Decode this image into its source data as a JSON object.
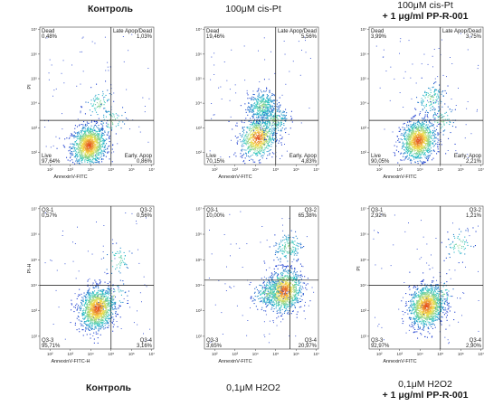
{
  "titles": {
    "top": [
      {
        "lines": [
          "Контроль"
        ]
      },
      {
        "lines": [
          "100μM cis-Pt"
        ]
      },
      {
        "lines": [
          "100μM cis-Pt",
          "+ 1 μg/ml PP-R-001"
        ]
      }
    ],
    "bottom": [
      {
        "lines": [
          "Контроль"
        ]
      },
      {
        "lines": [
          "0,1μM H2O2"
        ]
      },
      {
        "lines": [
          "0,1μM H2O2",
          "+ 1 μg/ml PP-R-001"
        ]
      }
    ]
  },
  "colors": {
    "density_low": "#1f3fd0",
    "density_mid": "#2fc8c8",
    "density_high": "#f5e04a",
    "density_peak": "#e03a1a",
    "quadrant_line": "#111111"
  },
  "chart_data": [
    {
      "type": "scatter",
      "subtype": "density-dot-plot",
      "xlabel": "AnnexinV-FITC",
      "ylabel": "PI",
      "x_scale": "log",
      "y_scale": "log",
      "x_ticks": [
        "10²",
        "10³",
        "10⁴",
        "10⁵",
        "10⁶",
        "10⁷"
      ],
      "y_ticks": [
        "10²",
        "10³",
        "10⁴",
        "10⁵",
        "10⁶",
        "10⁷"
      ],
      "quadrants": {
        "upper_left": {
          "label": "Dead",
          "value": "0,48%"
        },
        "upper_right": {
          "label": "Late Apop/Dead",
          "value": "1,03%"
        },
        "lower_left": {
          "label": "Live",
          "value": "97,64%"
        },
        "lower_right": {
          "label": "Early. Apop",
          "value": "0,86%"
        }
      },
      "clusters": [
        {
          "x": 3.9,
          "y": 2.3,
          "weight": 0.93
        },
        {
          "x": 4.4,
          "y": 4.0,
          "weight": 0.04
        },
        {
          "x": 5.0,
          "y": 3.3,
          "weight": 0.03
        }
      ]
    },
    {
      "type": "scatter",
      "subtype": "density-dot-plot",
      "xlabel": "AnnexinV-FITC",
      "ylabel": "",
      "x_scale": "log",
      "y_scale": "log",
      "x_ticks": [
        "10²",
        "10³",
        "10⁴",
        "10⁵",
        "10⁶",
        "10⁷"
      ],
      "y_ticks": [
        "10²",
        "10³",
        "10⁴",
        "10⁵",
        "10⁶",
        "10⁷"
      ],
      "quadrants": {
        "upper_left": {
          "label": "Dead",
          "value": "19,46%"
        },
        "upper_right": {
          "label": "Late Apop/Dead",
          "value": "5,56%"
        },
        "lower_left": {
          "label": "Live",
          "value": "70,15%"
        },
        "lower_right": {
          "label": "Early. Apop",
          "value": "4,83%"
        }
      },
      "clusters": [
        {
          "x": 4.1,
          "y": 2.6,
          "weight": 0.55
        },
        {
          "x": 4.3,
          "y": 3.9,
          "weight": 0.3
        },
        {
          "x": 4.9,
          "y": 3.3,
          "weight": 0.15
        }
      ]
    },
    {
      "type": "scatter",
      "subtype": "density-dot-plot",
      "xlabel": "AnnexinV-FITC",
      "ylabel": "",
      "x_scale": "log",
      "y_scale": "log",
      "x_ticks": [
        "10²",
        "10³",
        "10⁴",
        "10⁵",
        "10⁶",
        "10⁷"
      ],
      "y_ticks": [
        "10²",
        "10³",
        "10⁴",
        "10⁵",
        "10⁶",
        "10⁷"
      ],
      "quadrants": {
        "upper_left": {
          "label": "Dead",
          "value": "3,99%"
        },
        "upper_right": {
          "label": "Late Apop/Dead",
          "value": "3,75%"
        },
        "lower_left": {
          "label": "Live",
          "value": "90,05%"
        },
        "lower_right": {
          "label": "Early. Apop",
          "value": "2,21%"
        }
      },
      "clusters": [
        {
          "x": 3.9,
          "y": 2.5,
          "weight": 0.88
        },
        {
          "x": 4.5,
          "y": 4.2,
          "weight": 0.08
        },
        {
          "x": 5.0,
          "y": 3.3,
          "weight": 0.04
        }
      ]
    },
    {
      "type": "scatter",
      "subtype": "density-dot-plot",
      "xlabel": "AnnexinV-FITC-H",
      "ylabel": "PI-H",
      "x_scale": "log",
      "y_scale": "log",
      "x_ticks": [
        "10²",
        "10³",
        "10⁴",
        "10⁵",
        "10⁶",
        "10⁷"
      ],
      "y_ticks": [
        "10²",
        "10³",
        "10⁴",
        "10⁵",
        "10⁶",
        "10⁷"
      ],
      "quadrants": {
        "upper_left": {
          "label": "Q3-1",
          "value": "0,57%"
        },
        "upper_right": {
          "label": "Q3-2",
          "value": "0,56%"
        },
        "lower_left": {
          "label": "Q3-3",
          "value": "95,71%"
        },
        "lower_right": {
          "label": "Q3-4",
          "value": "3,16%"
        }
      },
      "clusters": [
        {
          "x": 4.3,
          "y": 3.1,
          "weight": 0.96
        },
        {
          "x": 5.3,
          "y": 5.0,
          "weight": 0.02
        },
        {
          "x": 5.1,
          "y": 3.6,
          "weight": 0.02
        }
      ]
    },
    {
      "type": "scatter",
      "subtype": "density-dot-plot",
      "xlabel": "AnnexinV-FITC",
      "ylabel": "",
      "x_scale": "log",
      "y_scale": "log",
      "x_ticks": [
        "10²",
        "10³",
        "10⁴",
        "10⁵",
        "10⁶",
        "10⁷"
      ],
      "y_ticks": [
        "10²",
        "10³",
        "10⁴",
        "10⁵",
        "10⁶",
        "10⁷"
      ],
      "quadrants": {
        "upper_left": {
          "label": "Q3-1",
          "value": "10,00%"
        },
        "upper_right": {
          "label": "Q3-2",
          "value": "65,38%"
        },
        "lower_left": {
          "label": "Q3-3",
          "value": "3,65%"
        },
        "lower_right": {
          "label": "Q3-4",
          "value": "20,97%"
        }
      },
      "clusters": [
        {
          "x": 5.4,
          "y": 3.8,
          "weight": 0.75
        },
        {
          "x": 4.6,
          "y": 3.7,
          "weight": 0.15
        },
        {
          "x": 5.6,
          "y": 5.5,
          "weight": 0.1
        }
      ]
    },
    {
      "type": "scatter",
      "subtype": "density-dot-plot",
      "xlabel": "AnnexinV-FITC",
      "ylabel": "PI",
      "x_scale": "log",
      "y_scale": "log",
      "x_ticks": [
        "10²",
        "10³",
        "10⁴",
        "10⁵",
        "10⁶",
        "10⁷"
      ],
      "y_ticks": [
        "10²",
        "10³",
        "10⁴",
        "10⁵",
        "10⁶",
        "10⁷"
      ],
      "quadrants": {
        "upper_left": {
          "label": "Q3-1",
          "value": "2,92%"
        },
        "upper_right": {
          "label": "Q3-2",
          "value": "1,21%"
        },
        "lower_left": {
          "label": "Q3-3",
          "value": "92,97%"
        },
        "lower_right": {
          "label": "Q3-4",
          "value": "2,90%"
        }
      },
      "clusters": [
        {
          "x": 4.3,
          "y": 3.2,
          "weight": 0.95
        },
        {
          "x": 5.9,
          "y": 5.6,
          "weight": 0.03
        },
        {
          "x": 5.0,
          "y": 3.6,
          "weight": 0.02
        }
      ]
    }
  ]
}
